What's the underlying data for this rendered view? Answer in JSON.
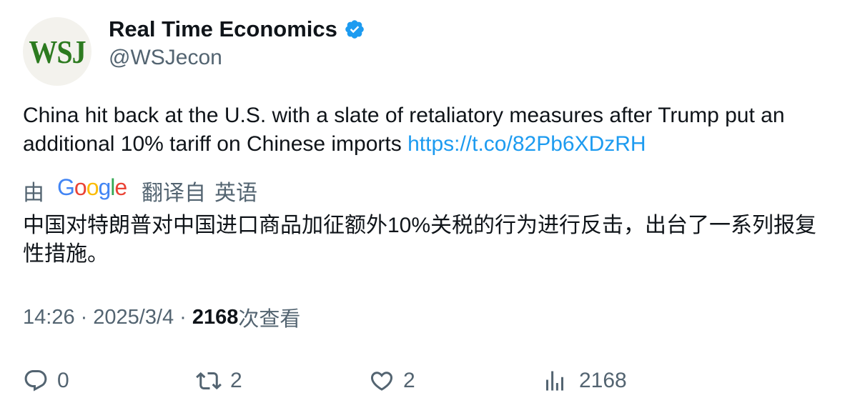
{
  "user": {
    "avatar_text": "WSJ",
    "display_name": "Real Time Economics",
    "handle": "@WSJecon",
    "verified_icon": "verified-badge-icon"
  },
  "tweet": {
    "text": "China hit back at the U.S. with a slate of retaliatory measures after Trump put an additional 10% tariff on Chinese imports ",
    "link": "https://t.co/82Pb6XDzRH"
  },
  "translation": {
    "prefix": "由",
    "provider": "Google",
    "label": "翻译自",
    "language": "英语",
    "text": "中国对特朗普对中国进口商品加征额外10%关税的行为进行反击，出台了一系列报复性措施。"
  },
  "meta": {
    "time": "14:26",
    "separator": "·",
    "date": "2025/3/4",
    "views": "2168",
    "views_label": "次查看"
  },
  "actions": {
    "replies": "0",
    "retweets": "2",
    "likes": "2",
    "views": "2168"
  },
  "colors": {
    "text_primary": "#0f1419",
    "text_secondary": "#536471",
    "link": "#1d9bf0",
    "verified": "#1d9bf0"
  }
}
